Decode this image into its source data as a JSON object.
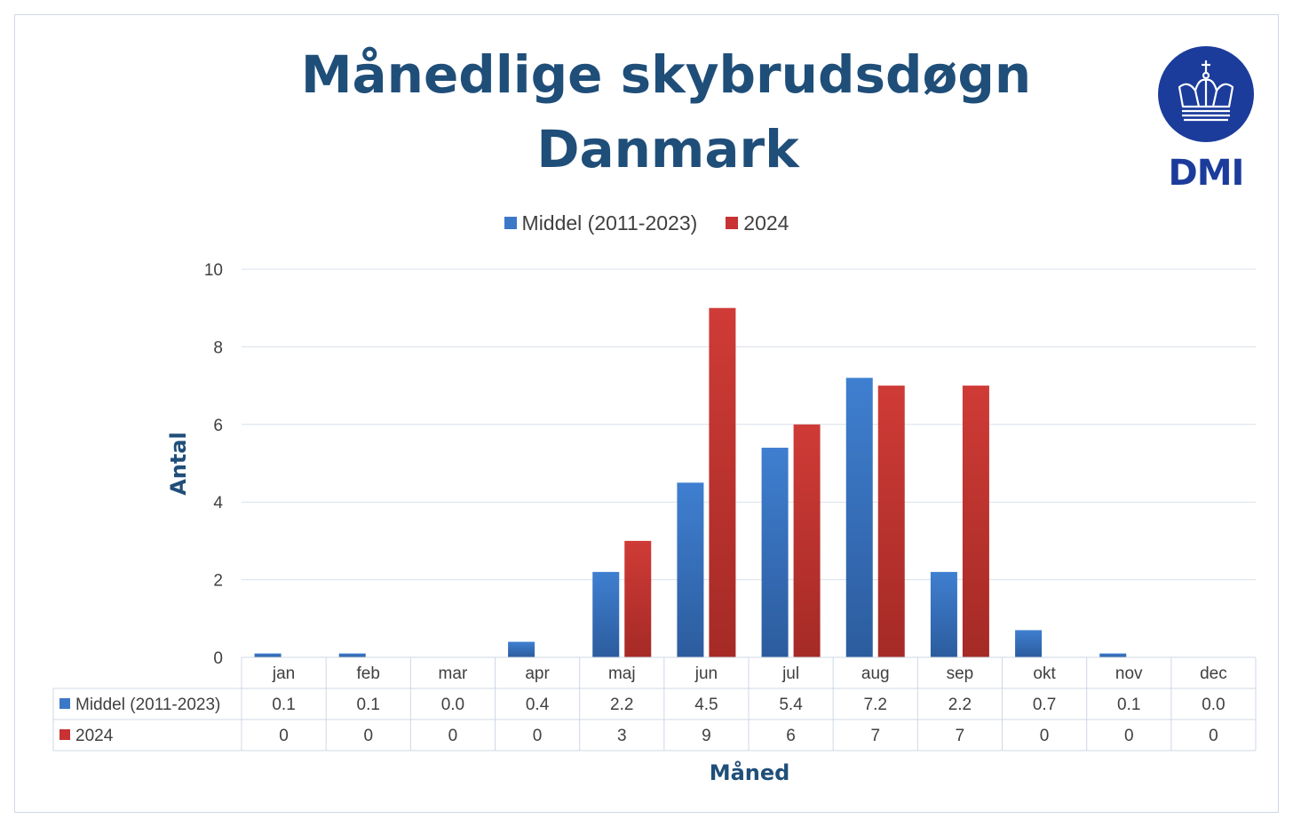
{
  "title_line1": "Månedlige skybrudsdøgn",
  "title_line2": "Danmark",
  "logo_text": "DMI",
  "colors": {
    "series1": "#3c78c8",
    "series2": "#c83232",
    "title": "#1f4e79",
    "logo": "#1c3c9c"
  },
  "chart_data": {
    "type": "bar",
    "title": "Månedlige skybrudsdøgn Danmark",
    "xlabel": "Måned",
    "ylabel": "Antal",
    "ylim": [
      0,
      10
    ],
    "yticks": [
      "0",
      "2",
      "4",
      "6",
      "8",
      "10"
    ],
    "grid": true,
    "legend_position": "top",
    "categories": [
      "jan",
      "feb",
      "mar",
      "apr",
      "maj",
      "jun",
      "jul",
      "aug",
      "sep",
      "okt",
      "nov",
      "dec"
    ],
    "series": [
      {
        "name": "Middel (2011-2023)",
        "values": [
          0.1,
          0.1,
          0.0,
          0.4,
          2.2,
          4.5,
          5.4,
          7.2,
          2.2,
          0.7,
          0.1,
          0.0
        ],
        "labels": [
          "0.1",
          "0.1",
          "0.0",
          "0.4",
          "2.2",
          "4.5",
          "5.4",
          "7.2",
          "2.2",
          "0.7",
          "0.1",
          "0.0"
        ]
      },
      {
        "name": "2024",
        "values": [
          0,
          0,
          0,
          0,
          3,
          9,
          6,
          7,
          7,
          0,
          0,
          0
        ],
        "labels": [
          "0",
          "0",
          "0",
          "0",
          "3",
          "9",
          "6",
          "7",
          "7",
          "0",
          "0",
          "0"
        ]
      }
    ]
  }
}
